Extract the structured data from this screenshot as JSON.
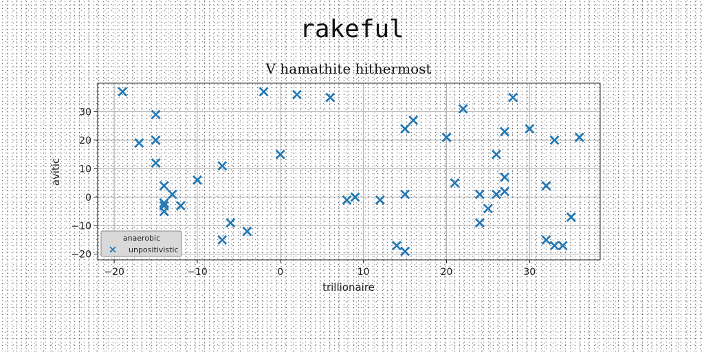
{
  "suptitle": "rakeful",
  "chart_data": {
    "type": "scatter",
    "title": "V hamathite hithermost",
    "xlabel": "trillionaire",
    "ylabel": "avitic",
    "xlim": [
      -22,
      38.5
    ],
    "ylim": [
      -22,
      40
    ],
    "xticks": [
      -20,
      -10,
      0,
      10,
      20,
      30
    ],
    "yticks": [
      -20,
      -10,
      0,
      10,
      20,
      30
    ],
    "grid": true,
    "legend": {
      "title": "anaerobic",
      "placement": "lower-left"
    },
    "marker": "X",
    "color": "#1f77b4",
    "series": [
      {
        "name": "unpositivistic",
        "points": [
          [
            -19,
            37
          ],
          [
            -17,
            19
          ],
          [
            -15,
            29
          ],
          [
            -15,
            20
          ],
          [
            -15,
            12
          ],
          [
            -14,
            4
          ],
          [
            -14,
            -2
          ],
          [
            -14,
            -3
          ],
          [
            -14,
            -5
          ],
          [
            -13,
            1
          ],
          [
            -12,
            -3
          ],
          [
            -10,
            6
          ],
          [
            -7,
            11
          ],
          [
            -7,
            -15
          ],
          [
            -6,
            -9
          ],
          [
            -4,
            -12
          ],
          [
            -2,
            37
          ],
          [
            0,
            15
          ],
          [
            2,
            36
          ],
          [
            6,
            35
          ],
          [
            8,
            -1
          ],
          [
            9,
            0
          ],
          [
            12,
            -1
          ],
          [
            14,
            -17
          ],
          [
            15,
            -19
          ],
          [
            15,
            24
          ],
          [
            15,
            1
          ],
          [
            16,
            27
          ],
          [
            20,
            21
          ],
          [
            21,
            5
          ],
          [
            22,
            31
          ],
          [
            24,
            1
          ],
          [
            24,
            -9
          ],
          [
            25,
            -4
          ],
          [
            26,
            15
          ],
          [
            26,
            1
          ],
          [
            27,
            2
          ],
          [
            27,
            7
          ],
          [
            27,
            23
          ],
          [
            28,
            35
          ],
          [
            30,
            24
          ],
          [
            32,
            4
          ],
          [
            32,
            -15
          ],
          [
            33,
            20
          ],
          [
            33,
            -17
          ],
          [
            34,
            -17
          ],
          [
            35,
            -7
          ],
          [
            36,
            21
          ]
        ]
      }
    ]
  }
}
